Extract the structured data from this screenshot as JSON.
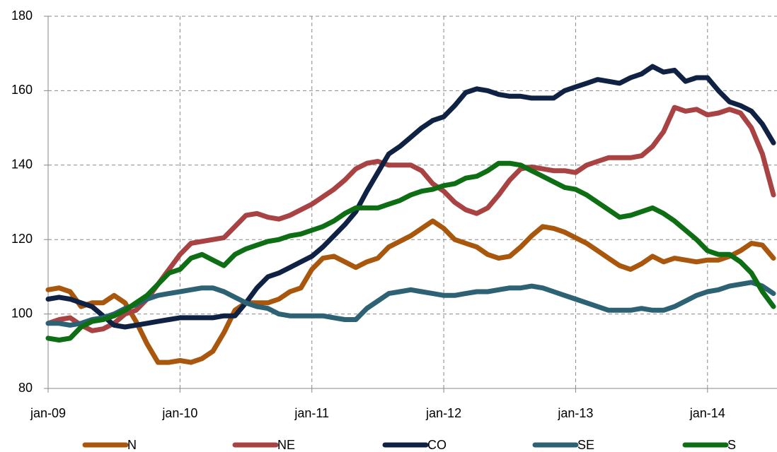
{
  "chart_data": {
    "type": "line",
    "categories": [
      "jan-09",
      null,
      null,
      null,
      null,
      null,
      null,
      null,
      null,
      null,
      null,
      null,
      "jan-10",
      null,
      null,
      null,
      null,
      null,
      null,
      null,
      null,
      null,
      null,
      null,
      "jan-11",
      null,
      null,
      null,
      null,
      null,
      null,
      null,
      null,
      null,
      null,
      null,
      "jan-12",
      null,
      null,
      null,
      null,
      null,
      null,
      null,
      null,
      null,
      null,
      null,
      "jan-13",
      null,
      null,
      null,
      null,
      null,
      null,
      null,
      null,
      null,
      null,
      null,
      "jan-14",
      null,
      null,
      null,
      null,
      null,
      null
    ],
    "series": [
      {
        "name": "N",
        "color": "#a8570d",
        "values": [
          106.5,
          107,
          106,
          102,
          103,
          103,
          105,
          103,
          98,
          92,
          87,
          87,
          87.5,
          87,
          88,
          90,
          95,
          101,
          103,
          103,
          103,
          104,
          106,
          107,
          112,
          115,
          115.5,
          114,
          112.5,
          114,
          115,
          118,
          119.5,
          121,
          123,
          125,
          123,
          120,
          119,
          118,
          116,
          115,
          115.5,
          118,
          121,
          123.5,
          123,
          122,
          120.5,
          119,
          117,
          115,
          113,
          112,
          113.5,
          115.5,
          114,
          115,
          114.5,
          114,
          114.5,
          114.5,
          115.5,
          117,
          119,
          118.5,
          115
        ]
      },
      {
        "name": "NE",
        "color": "#a94343",
        "values": [
          97.5,
          98.5,
          99,
          97,
          95.5,
          96,
          97.5,
          100,
          101,
          104,
          108,
          112,
          116,
          119,
          119.5,
          120,
          120.5,
          123.5,
          126.5,
          127,
          126,
          125.5,
          126.5,
          128,
          129.5,
          131.5,
          133.5,
          136,
          139,
          140.5,
          141,
          140,
          140,
          140,
          138.5,
          135,
          133,
          130,
          128,
          127,
          128.5,
          132,
          136,
          139,
          139.5,
          139,
          138.5,
          138.5,
          138,
          140,
          141,
          142,
          142,
          142,
          142.5,
          145,
          149,
          155.5,
          154.5,
          155,
          153.5,
          154,
          155,
          154,
          150,
          143,
          132
        ]
      },
      {
        "name": "CO",
        "color": "#0f2244",
        "values": [
          104,
          104.5,
          104,
          103,
          102,
          99.5,
          97,
          96.5,
          97,
          97.5,
          98,
          98.5,
          99,
          99,
          99,
          99,
          99.5,
          99.5,
          103,
          107,
          110,
          111,
          112.5,
          114,
          115.5,
          118,
          121,
          124,
          127.5,
          133,
          138,
          143,
          145,
          147.5,
          150,
          152,
          153,
          156,
          159.5,
          160.5,
          160,
          159,
          158.5,
          158.5,
          158,
          158,
          158,
          160,
          161,
          162,
          163,
          162.5,
          162,
          163.5,
          164.5,
          166.5,
          165,
          165.5,
          162.5,
          163.5,
          163.5,
          160,
          157,
          156,
          154.5,
          151,
          146
        ]
      },
      {
        "name": "SE",
        "color": "#2d6275",
        "values": [
          97.5,
          97.5,
          97,
          97.5,
          98.5,
          99,
          100,
          101.5,
          102.5,
          104,
          105,
          105.5,
          106,
          106.5,
          107,
          107,
          106,
          104.5,
          103,
          102,
          101.5,
          100,
          99.5,
          99.5,
          99.5,
          99.5,
          99,
          98.5,
          98.5,
          101.5,
          103.5,
          105.5,
          106,
          106.5,
          106,
          105.5,
          105,
          105,
          105.5,
          106,
          106,
          106.5,
          107,
          107,
          107.5,
          107,
          106,
          105,
          104,
          103,
          102,
          101,
          101,
          101,
          101.5,
          101,
          101,
          102,
          103.5,
          105,
          106,
          106.5,
          107.5,
          108,
          108.5,
          107.5,
          105.5
        ]
      },
      {
        "name": "S",
        "color": "#0d6e14",
        "values": [
          93.5,
          93,
          93.5,
          96.5,
          98,
          98.5,
          99.5,
          101,
          103,
          105,
          108,
          111,
          112,
          115,
          116,
          114.5,
          113,
          116,
          117.5,
          118.5,
          119.5,
          120,
          121,
          121.5,
          122.5,
          123.5,
          125,
          127,
          128.5,
          128.5,
          128.5,
          129.5,
          130.5,
          132,
          133,
          133.5,
          134.5,
          135,
          136.5,
          137,
          138.5,
          140.5,
          140.5,
          140,
          138.5,
          137,
          135.5,
          134,
          133.5,
          132,
          130,
          128,
          126,
          126.5,
          127.5,
          128.5,
          127,
          125,
          122.5,
          120,
          117,
          116,
          116,
          114,
          111,
          106,
          102
        ]
      }
    ],
    "ylim": [
      80,
      180
    ],
    "yticks": [
      80,
      100,
      120,
      140,
      160,
      180
    ],
    "grid": true
  }
}
